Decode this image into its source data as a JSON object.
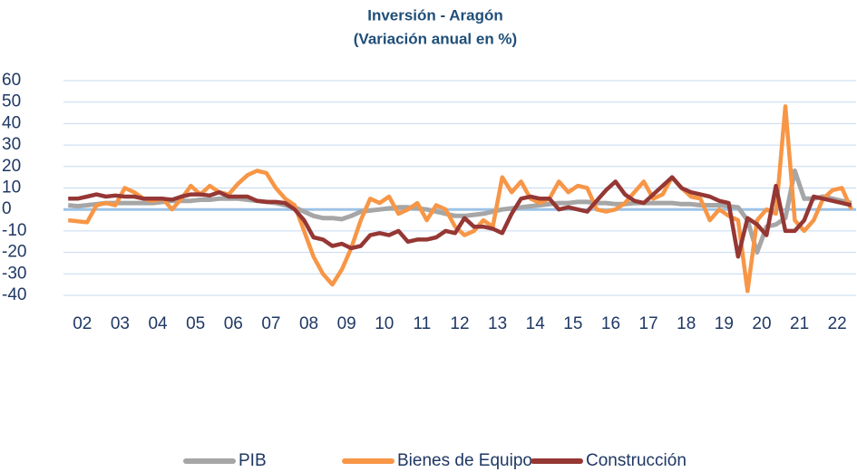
{
  "chart_data": {
    "type": "line",
    "title": [
      "Inversión - Aragón",
      "(Variación anual en %)"
    ],
    "categories": [
      null,
      "02",
      null,
      null,
      null,
      "03",
      null,
      null,
      null,
      "04",
      null,
      null,
      null,
      "05",
      null,
      null,
      null,
      "06",
      null,
      null,
      null,
      "07",
      null,
      null,
      null,
      "08",
      null,
      null,
      null,
      "09",
      null,
      null,
      null,
      "10",
      null,
      null,
      null,
      "11",
      null,
      null,
      null,
      "12",
      null,
      null,
      null,
      "13",
      null,
      null,
      null,
      "14",
      null,
      null,
      null,
      "15",
      null,
      null,
      null,
      "16",
      null,
      null,
      null,
      "17",
      null,
      null,
      null,
      "18",
      null,
      null,
      null,
      "19",
      null,
      null,
      null,
      "20",
      null,
      null,
      null,
      "21",
      null,
      null,
      null,
      "22",
      null,
      null
    ],
    "series": [
      {
        "name": "PIB",
        "color": "#a6a6a6",
        "values": [
          2,
          1.5,
          2,
          2.5,
          3,
          3,
          3,
          3,
          3,
          3,
          3.5,
          4,
          4,
          4,
          4.5,
          4.5,
          5,
          5,
          5,
          4.5,
          4,
          3.5,
          3,
          2,
          1,
          -1,
          -3,
          -4,
          -4,
          -4.5,
          -3,
          -1,
          -0.5,
          0,
          0.5,
          1,
          1,
          0.5,
          0,
          -1,
          -2,
          -3,
          -3,
          -2.5,
          -2,
          -1,
          0,
          0.5,
          1,
          1.5,
          2,
          2.5,
          3,
          3,
          3.5,
          3.5,
          3,
          3,
          2.5,
          2.5,
          3,
          3,
          3,
          3,
          3,
          2.5,
          2.5,
          2,
          2,
          2,
          1.5,
          1,
          -5,
          -20,
          -8,
          -7,
          -4,
          18,
          5,
          5,
          6,
          5,
          4,
          3
        ]
      },
      {
        "name": "Bienes de Equipo",
        "color": "#f79646",
        "values": [
          -5,
          -5.5,
          -6,
          2,
          3,
          2,
          10,
          8,
          5,
          4,
          5,
          0,
          5,
          11,
          7,
          11,
          8,
          7,
          12,
          16,
          18,
          17,
          10,
          5,
          2,
          -10,
          -22,
          -30,
          -35,
          -28,
          -18,
          -5,
          5,
          3,
          6,
          -2,
          0,
          3,
          -5,
          2,
          0,
          -8,
          -12,
          -10,
          -5,
          -8,
          15,
          8,
          13,
          5,
          3,
          5,
          13,
          8,
          11,
          10,
          0,
          -1,
          0,
          3,
          8,
          13,
          5,
          7,
          15,
          10,
          6,
          5,
          -5,
          0,
          -3,
          -5,
          -38,
          -5,
          0,
          -2,
          48,
          -5,
          -10,
          -5,
          5,
          9,
          10,
          0
        ]
      },
      {
        "name": "Construcción",
        "color": "#953734",
        "values": [
          5,
          5,
          6,
          7,
          6,
          6.5,
          6,
          6,
          5,
          5,
          5,
          4.5,
          6,
          7,
          7,
          6.5,
          8,
          6,
          6,
          6,
          4,
          3.5,
          3.5,
          3,
          0,
          -5,
          -13,
          -14,
          -17,
          -16,
          -18,
          -17,
          -12,
          -11,
          -12,
          -10,
          -15,
          -14,
          -14,
          -13,
          -10,
          -11,
          -4,
          -8,
          -8,
          -9,
          -11,
          -2,
          5,
          6,
          5,
          5,
          0,
          1,
          0,
          -1,
          4,
          9,
          13,
          7,
          4,
          3,
          7,
          11,
          15,
          10,
          8,
          7,
          6,
          4,
          3,
          -22,
          -4,
          -7,
          -12,
          11,
          -10,
          -10,
          -5,
          6,
          5,
          4,
          3,
          2
        ]
      }
    ],
    "ylim": [
      -40,
      60
    ],
    "yticks": [
      -40,
      -30,
      -20,
      -10,
      0,
      10,
      20,
      30,
      40,
      50,
      60
    ],
    "grid": true,
    "legend": "bottom"
  }
}
